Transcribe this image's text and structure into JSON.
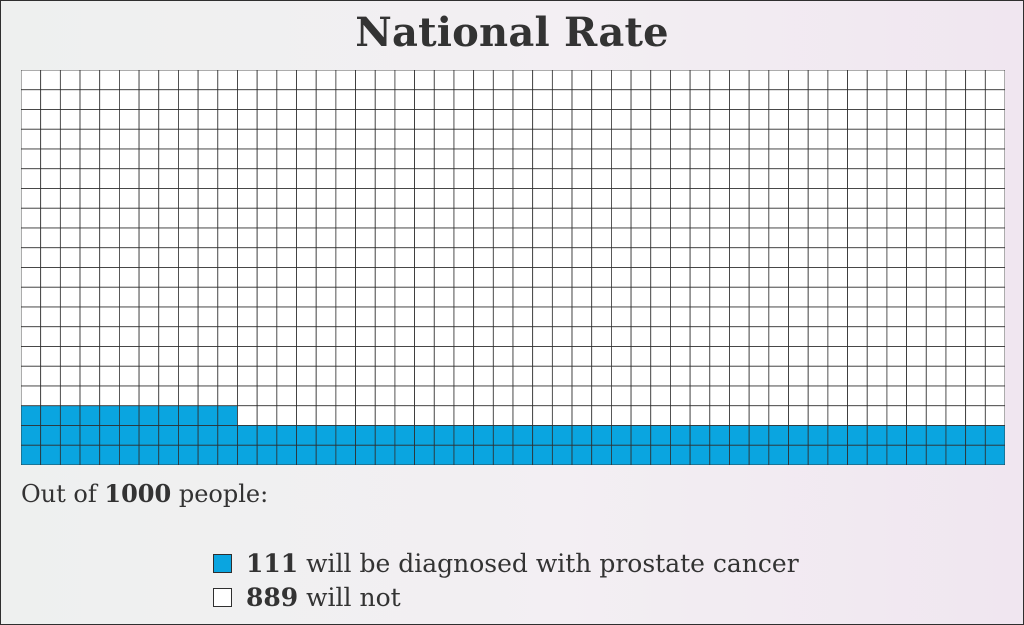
{
  "title": "National Rate",
  "chart_data": {
    "type": "waffle",
    "total": 1000,
    "rows": 20,
    "cols": 50,
    "fill_order": "bottom row first, left to right, rows stacked upward",
    "highlighted": 111,
    "not_highlighted": 889,
    "highlight_color": "#0aa5e0",
    "empty_color": "#ffffff",
    "grid_line_color": "#2f2f2f"
  },
  "summary": {
    "prefix": "Out of",
    "total": "1000",
    "suffix": "people:"
  },
  "legend": [
    {
      "count": "111",
      "text": "will be diagnosed with prostate cancer",
      "color": "#0aa5e0"
    },
    {
      "count": "889",
      "text": "will not",
      "color": "#ffffff"
    }
  ]
}
